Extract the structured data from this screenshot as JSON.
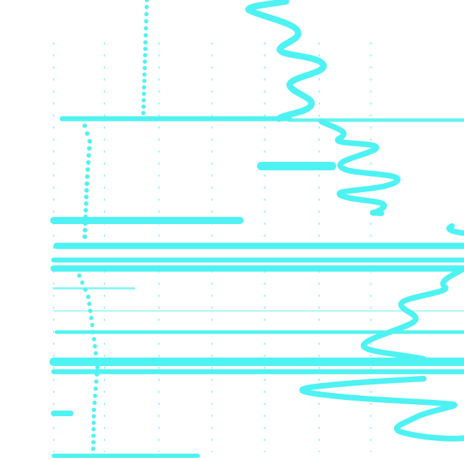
{
  "colors": {
    "background": "#ffffff",
    "trace": "#4ff2f2",
    "grid": "#7ff5f5"
  }
}
